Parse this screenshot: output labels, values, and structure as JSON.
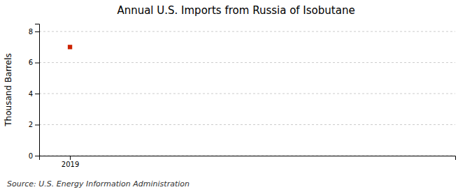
{
  "chart_data": {
    "type": "scatter",
    "title": "Annual U.S. Imports from Russia of Isobutane",
    "ylabel": "Thousand Barrels",
    "source": "Source: U.S. Energy Information Administration",
    "x": [
      2019
    ],
    "values": [
      7
    ],
    "color": "#cc2200",
    "marker": "square",
    "xlim": [
      2018.6,
      2024.0
    ],
    "ylim": [
      0,
      8.5
    ],
    "xticks": [
      2019
    ],
    "yticks": [
      0,
      2,
      4,
      6,
      8
    ],
    "grid": "y"
  }
}
